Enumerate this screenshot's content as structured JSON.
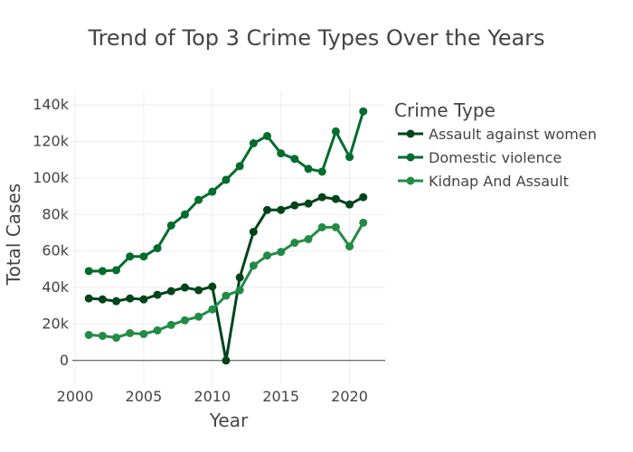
{
  "chart_data": {
    "type": "line",
    "title": "Trend of Top 3 Crime Types Over the Years",
    "xlabel": "Year",
    "ylabel": "Total Cases",
    "xlim": [
      1999.8,
      2022.6
    ],
    "ylim": [
      -13000,
      148000
    ],
    "x_ticks": [
      2000,
      2005,
      2010,
      2015,
      2020
    ],
    "x_tick_labels": [
      "2000",
      "2005",
      "2010",
      "2015",
      "2020"
    ],
    "y_ticks": [
      0,
      20000,
      40000,
      60000,
      80000,
      100000,
      120000,
      140000
    ],
    "y_tick_labels": [
      "0",
      "20k",
      "40k",
      "60k",
      "80k",
      "100k",
      "120k",
      "140k"
    ],
    "grid": true,
    "legend_title": "Crime Type",
    "legend_position": "right",
    "x": [
      2001,
      2002,
      2003,
      2004,
      2005,
      2006,
      2007,
      2008,
      2009,
      2010,
      2011,
      2012,
      2013,
      2014,
      2015,
      2016,
      2017,
      2018,
      2019,
      2020,
      2021
    ],
    "series": [
      {
        "name": "Assault against women",
        "color": "#00441b",
        "values": [
          34000,
          33500,
          32500,
          34000,
          33500,
          36000,
          38000,
          40000,
          38500,
          40500,
          0,
          45500,
          70500,
          82500,
          82500,
          85000,
          86000,
          89500,
          88500,
          85500,
          89500
        ]
      },
      {
        "name": "Domestic violence",
        "color": "#006d2c",
        "values": [
          49000,
          49000,
          49500,
          57000,
          57000,
          61500,
          74000,
          80000,
          88000,
          92500,
          99000,
          106500,
          119000,
          123000,
          113500,
          110500,
          105000,
          103500,
          125500,
          111500,
          136500
        ]
      },
      {
        "name": "Kidnap And Assault",
        "color": "#238b45",
        "values": [
          14000,
          13500,
          12500,
          15000,
          14500,
          16500,
          19500,
          22000,
          24000,
          28000,
          35500,
          38500,
          52000,
          57500,
          59500,
          64500,
          66500,
          73000,
          73000,
          62500,
          75500
        ]
      }
    ]
  }
}
